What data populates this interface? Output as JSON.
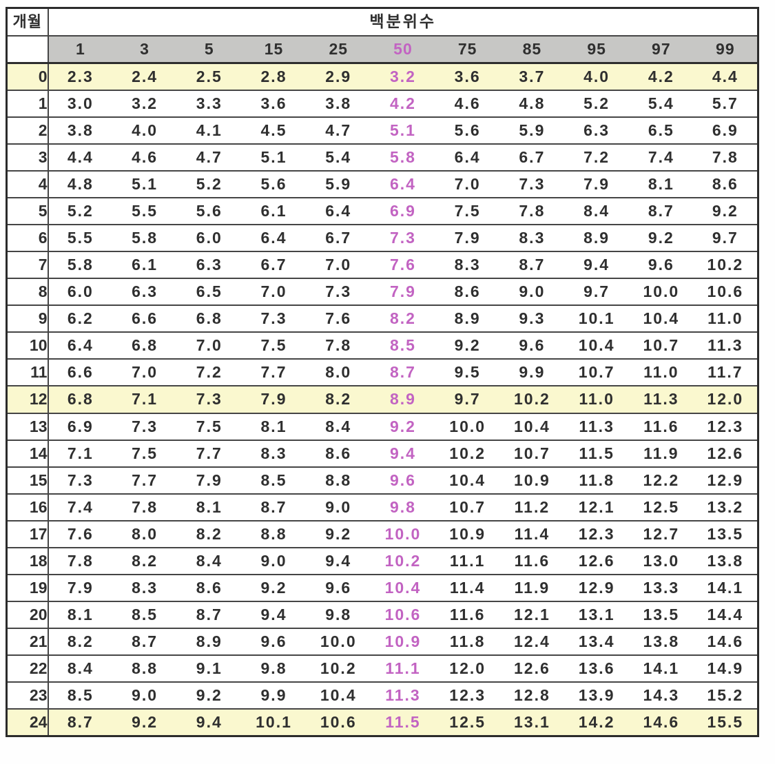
{
  "table": {
    "corner_header": "개월",
    "group_header": "백분위수",
    "percentiles": [
      "1",
      "3",
      "5",
      "15",
      "25",
      "50",
      "75",
      "85",
      "95",
      "97",
      "99"
    ],
    "highlight_percentile": "50",
    "highlight_months": [
      "0",
      "12",
      "24"
    ],
    "colors": {
      "header_gray": "#c7c7c5",
      "highlight_row_yellow": "#faf8cf",
      "median_magenta": "#c263c2",
      "text_dark": "#2f2f2f",
      "grid_line": "#454545"
    },
    "rows": [
      {
        "month": "0",
        "highlight": true,
        "values": [
          "2.3",
          "2.4",
          "2.5",
          "2.8",
          "2.9",
          "3.2",
          "3.6",
          "3.7",
          "4.0",
          "4.2",
          "4.4"
        ]
      },
      {
        "month": "1",
        "highlight": false,
        "values": [
          "3.0",
          "3.2",
          "3.3",
          "3.6",
          "3.8",
          "4.2",
          "4.6",
          "4.8",
          "5.2",
          "5.4",
          "5.7"
        ]
      },
      {
        "month": "2",
        "highlight": false,
        "values": [
          "3.8",
          "4.0",
          "4.1",
          "4.5",
          "4.7",
          "5.1",
          "5.6",
          "5.9",
          "6.3",
          "6.5",
          "6.9"
        ]
      },
      {
        "month": "3",
        "highlight": false,
        "values": [
          "4.4",
          "4.6",
          "4.7",
          "5.1",
          "5.4",
          "5.8",
          "6.4",
          "6.7",
          "7.2",
          "7.4",
          "7.8"
        ]
      },
      {
        "month": "4",
        "highlight": false,
        "values": [
          "4.8",
          "5.1",
          "5.2",
          "5.6",
          "5.9",
          "6.4",
          "7.0",
          "7.3",
          "7.9",
          "8.1",
          "8.6"
        ]
      },
      {
        "month": "5",
        "highlight": false,
        "values": [
          "5.2",
          "5.5",
          "5.6",
          "6.1",
          "6.4",
          "6.9",
          "7.5",
          "7.8",
          "8.4",
          "8.7",
          "9.2"
        ]
      },
      {
        "month": "6",
        "highlight": false,
        "values": [
          "5.5",
          "5.8",
          "6.0",
          "6.4",
          "6.7",
          "7.3",
          "7.9",
          "8.3",
          "8.9",
          "9.2",
          "9.7"
        ]
      },
      {
        "month": "7",
        "highlight": false,
        "values": [
          "5.8",
          "6.1",
          "6.3",
          "6.7",
          "7.0",
          "7.6",
          "8.3",
          "8.7",
          "9.4",
          "9.6",
          "10.2"
        ]
      },
      {
        "month": "8",
        "highlight": false,
        "values": [
          "6.0",
          "6.3",
          "6.5",
          "7.0",
          "7.3",
          "7.9",
          "8.6",
          "9.0",
          "9.7",
          "10.0",
          "10.6"
        ]
      },
      {
        "month": "9",
        "highlight": false,
        "values": [
          "6.2",
          "6.6",
          "6.8",
          "7.3",
          "7.6",
          "8.2",
          "8.9",
          "9.3",
          "10.1",
          "10.4",
          "11.0"
        ]
      },
      {
        "month": "10",
        "highlight": false,
        "values": [
          "6.4",
          "6.8",
          "7.0",
          "7.5",
          "7.8",
          "8.5",
          "9.2",
          "9.6",
          "10.4",
          "10.7",
          "11.3"
        ]
      },
      {
        "month": "11",
        "highlight": false,
        "values": [
          "6.6",
          "7.0",
          "7.2",
          "7.7",
          "8.0",
          "8.7",
          "9.5",
          "9.9",
          "10.7",
          "11.0",
          "11.7"
        ]
      },
      {
        "month": "12",
        "highlight": true,
        "values": [
          "6.8",
          "7.1",
          "7.3",
          "7.9",
          "8.2",
          "8.9",
          "9.7",
          "10.2",
          "11.0",
          "11.3",
          "12.0"
        ]
      },
      {
        "month": "13",
        "highlight": false,
        "values": [
          "6.9",
          "7.3",
          "7.5",
          "8.1",
          "8.4",
          "9.2",
          "10.0",
          "10.4",
          "11.3",
          "11.6",
          "12.3"
        ]
      },
      {
        "month": "14",
        "highlight": false,
        "values": [
          "7.1",
          "7.5",
          "7.7",
          "8.3",
          "8.6",
          "9.4",
          "10.2",
          "10.7",
          "11.5",
          "11.9",
          "12.6"
        ]
      },
      {
        "month": "15",
        "highlight": false,
        "values": [
          "7.3",
          "7.7",
          "7.9",
          "8.5",
          "8.8",
          "9.6",
          "10.4",
          "10.9",
          "11.8",
          "12.2",
          "12.9"
        ]
      },
      {
        "month": "16",
        "highlight": false,
        "values": [
          "7.4",
          "7.8",
          "8.1",
          "8.7",
          "9.0",
          "9.8",
          "10.7",
          "11.2",
          "12.1",
          "12.5",
          "13.2"
        ]
      },
      {
        "month": "17",
        "highlight": false,
        "values": [
          "7.6",
          "8.0",
          "8.2",
          "8.8",
          "9.2",
          "10.0",
          "10.9",
          "11.4",
          "12.3",
          "12.7",
          "13.5"
        ]
      },
      {
        "month": "18",
        "highlight": false,
        "values": [
          "7.8",
          "8.2",
          "8.4",
          "9.0",
          "9.4",
          "10.2",
          "11.1",
          "11.6",
          "12.6",
          "13.0",
          "13.8"
        ]
      },
      {
        "month": "19",
        "highlight": false,
        "values": [
          "7.9",
          "8.3",
          "8.6",
          "9.2",
          "9.6",
          "10.4",
          "11.4",
          "11.9",
          "12.9",
          "13.3",
          "14.1"
        ]
      },
      {
        "month": "20",
        "highlight": false,
        "values": [
          "8.1",
          "8.5",
          "8.7",
          "9.4",
          "9.8",
          "10.6",
          "11.6",
          "12.1",
          "13.1",
          "13.5",
          "14.4"
        ]
      },
      {
        "month": "21",
        "highlight": false,
        "values": [
          "8.2",
          "8.7",
          "8.9",
          "9.6",
          "10.0",
          "10.9",
          "11.8",
          "12.4",
          "13.4",
          "13.8",
          "14.6"
        ]
      },
      {
        "month": "22",
        "highlight": false,
        "values": [
          "8.4",
          "8.8",
          "9.1",
          "9.8",
          "10.2",
          "11.1",
          "12.0",
          "12.6",
          "13.6",
          "14.1",
          "14.9"
        ]
      },
      {
        "month": "23",
        "highlight": false,
        "values": [
          "8.5",
          "9.0",
          "9.2",
          "9.9",
          "10.4",
          "11.3",
          "12.3",
          "12.8",
          "13.9",
          "14.3",
          "15.2"
        ]
      },
      {
        "month": "24",
        "highlight": true,
        "values": [
          "8.7",
          "9.2",
          "9.4",
          "10.1",
          "10.6",
          "11.5",
          "12.5",
          "13.1",
          "14.2",
          "14.6",
          "15.5"
        ]
      }
    ]
  }
}
